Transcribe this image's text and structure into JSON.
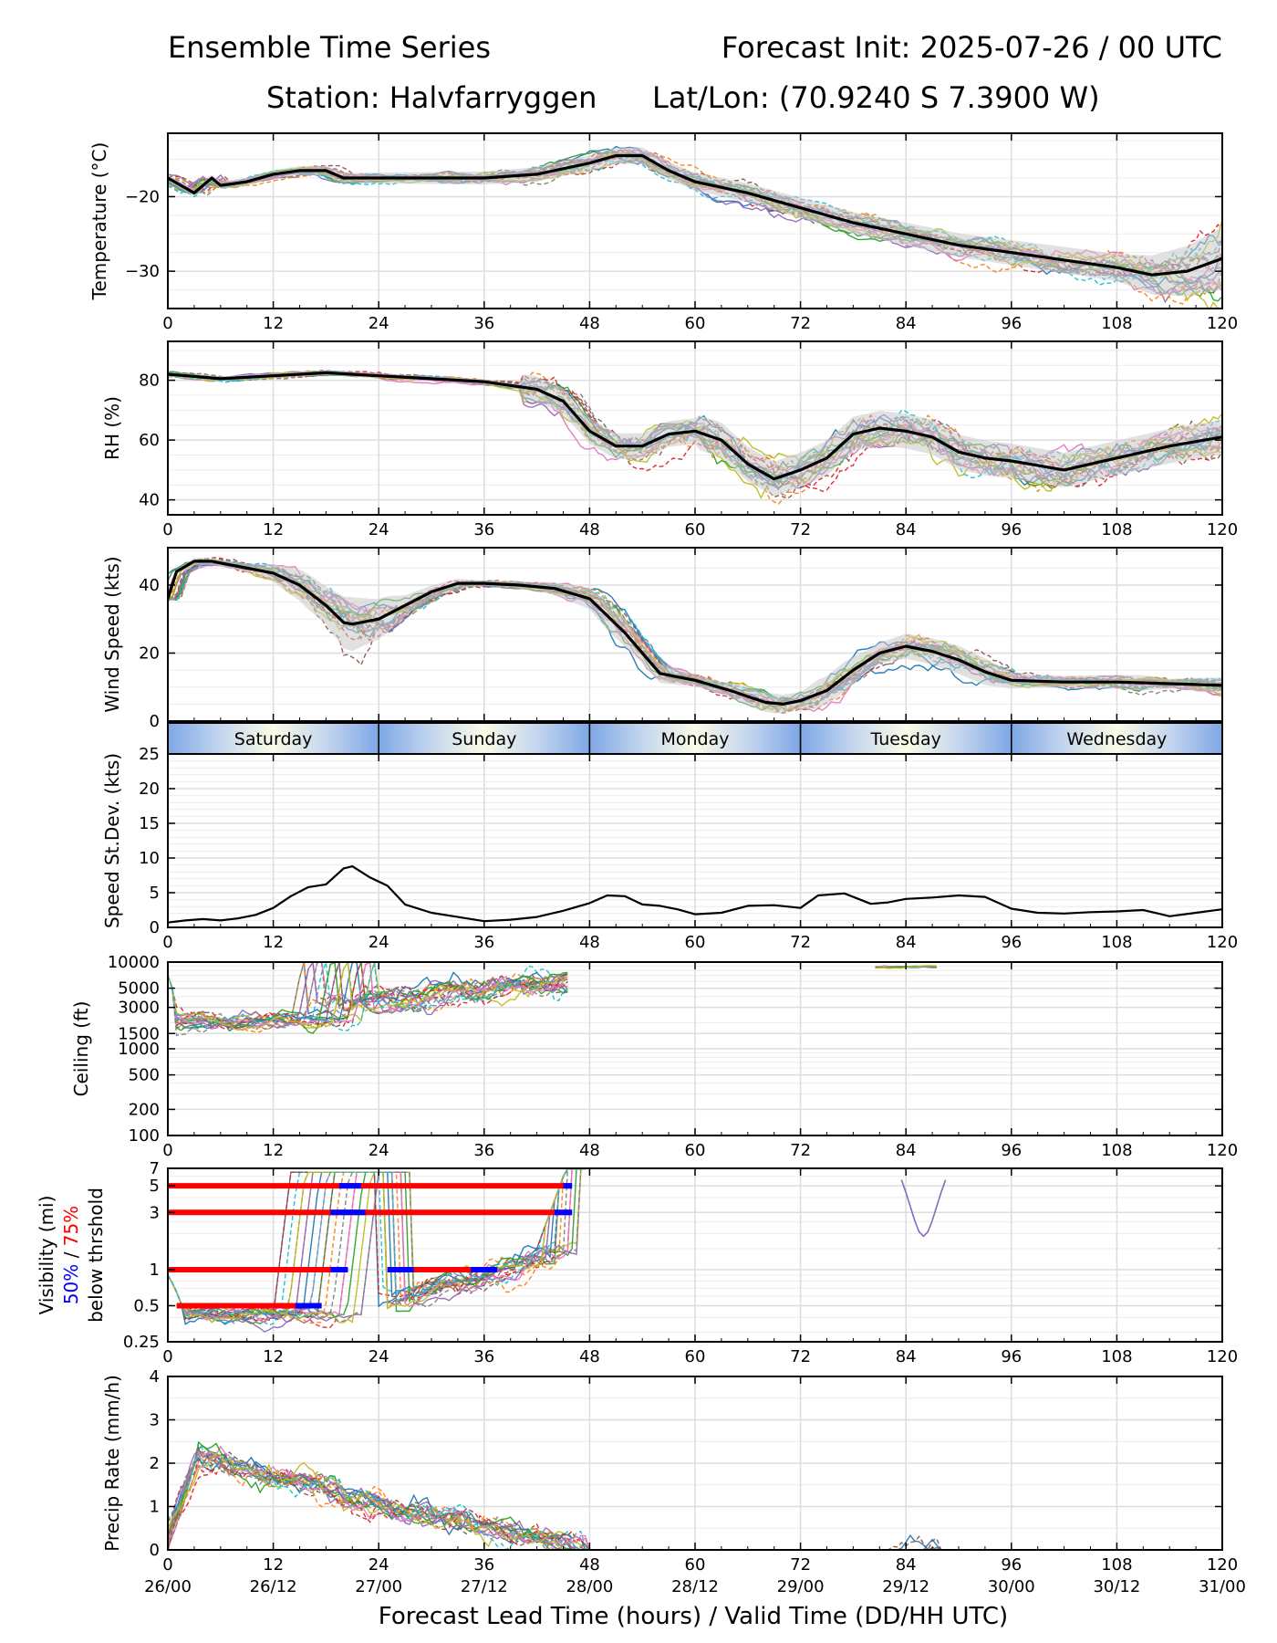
{
  "header": {
    "title_left": "Ensemble Time Series",
    "title_right": "Forecast Init: 2025-07-26 / 00 UTC",
    "station": "Station: Halvfarryggen",
    "latlon": "Lat/Lon: (70.9240 S 7.3900 W)"
  },
  "xlabel": "Forecast Lead Time (hours) / Valid Time (DD/HH UTC)",
  "colors": {
    "mean": "#000000",
    "spread_band": "#c8c8c8",
    "threshold_75": "#ff0000",
    "threshold_50": "#0000ff",
    "grid": "#dddddd",
    "ensemble": [
      "#1f77b4",
      "#ff7f0e",
      "#2ca02c",
      "#d62728",
      "#9467bd",
      "#8c564b",
      "#e377c2",
      "#7f7f7f",
      "#bcbd22",
      "#17becf"
    ]
  },
  "chart_data": [
    {
      "type": "line",
      "name": "temperature",
      "ylabel": "Temperature (°C)",
      "ylim": [
        -35,
        -11.5
      ],
      "yticks": [
        -20,
        -30
      ],
      "ytick_labels": [
        "−20",
        "−30"
      ],
      "xlim": [
        0,
        120
      ],
      "xticks": [
        0,
        12,
        24,
        36,
        48,
        60,
        72,
        84,
        96,
        108,
        120
      ],
      "grid": true,
      "ensemble_members": 20,
      "ensemble_mean": {
        "x": [
          0,
          3,
          4,
          5,
          6,
          9,
          12,
          15,
          18,
          20,
          24,
          30,
          36,
          42,
          48,
          51,
          54,
          57,
          60,
          66,
          72,
          78,
          84,
          90,
          96,
          102,
          108,
          112,
          116,
          120
        ],
        "y": [
          -17.5,
          -19.5,
          -18.5,
          -17.5,
          -18.5,
          -18,
          -17,
          -16.5,
          -16.5,
          -17.5,
          -17.5,
          -17.5,
          -17.5,
          -17,
          -15.5,
          -14.5,
          -14.5,
          -16.5,
          -18,
          -19.5,
          -21.5,
          -23.5,
          -25,
          -26.5,
          -27.5,
          -28.5,
          -29.5,
          -30.5,
          -30,
          -28.3
        ]
      }
    },
    {
      "type": "line",
      "name": "rh",
      "ylabel": "RH (%)",
      "ylim": [
        35,
        93
      ],
      "yticks": [
        80,
        60,
        40
      ],
      "xlim": [
        0,
        120
      ],
      "grid": true,
      "ensemble_members": 20,
      "ensemble_mean": {
        "x": [
          0,
          6,
          12,
          18,
          24,
          30,
          36,
          42,
          45,
          48,
          51,
          54,
          57,
          60,
          63,
          66,
          69,
          72,
          75,
          78,
          81,
          84,
          87,
          90,
          93,
          96,
          102,
          108,
          114,
          120
        ],
        "y": [
          82,
          80.5,
          81.5,
          82.5,
          81.5,
          80.5,
          79.5,
          77,
          73,
          63,
          58,
          58,
          62,
          63,
          60,
          52,
          47,
          50,
          54,
          62,
          64,
          63,
          61,
          56,
          54,
          53,
          50,
          54,
          58,
          61
        ]
      }
    },
    {
      "type": "line",
      "name": "wind_speed",
      "ylabel": "Wind Speed (kts)",
      "ylim": [
        0,
        51
      ],
      "yticks": [
        0,
        20,
        40
      ],
      "xlim": [
        0,
        120
      ],
      "grid": true,
      "ensemble_members": 20,
      "ensemble_mean": {
        "x": [
          0,
          1,
          3,
          5,
          8,
          12,
          15,
          18,
          20,
          21,
          24,
          27,
          30,
          33,
          36,
          40,
          44,
          48,
          52,
          56,
          60,
          64,
          68,
          70,
          72,
          75,
          78,
          81,
          84,
          87,
          90,
          93,
          96,
          102,
          108,
          114,
          120
        ],
        "y": [
          36,
          44,
          47,
          47,
          45.5,
          43.5,
          40,
          34,
          29,
          28.5,
          30,
          34,
          38,
          40.5,
          40.5,
          40,
          39,
          36,
          26,
          14,
          12,
          9,
          5.5,
          5,
          6,
          9,
          15,
          20,
          22,
          20.5,
          18,
          14.5,
          12,
          11.5,
          11.5,
          11,
          10.5
        ]
      }
    },
    {
      "type": "line",
      "name": "speed_stdev",
      "ylabel": "Speed St.Dev. (kts)",
      "ylim": [
        0,
        25
      ],
      "yticks": [
        0,
        5,
        10,
        15,
        20,
        25
      ],
      "xlim": [
        0,
        120
      ],
      "grid": true,
      "series": [
        {
          "x": [
            0,
            2,
            4,
            6,
            8,
            10,
            12,
            14,
            16,
            18,
            20,
            21,
            23,
            25,
            27,
            30,
            33,
            36,
            39,
            42,
            45,
            48,
            50,
            52,
            54,
            56,
            58,
            60,
            63,
            66,
            69,
            72,
            74,
            77,
            80,
            82,
            84,
            87,
            90,
            93,
            96,
            99,
            102,
            105,
            108,
            111,
            114,
            117,
            120
          ],
          "y": [
            0.7,
            1,
            1.2,
            1,
            1.3,
            1.8,
            2.8,
            4.5,
            5.8,
            6.2,
            8.5,
            8.8,
            7.2,
            6,
            3.3,
            2.1,
            1.5,
            0.9,
            1.1,
            1.5,
            2.4,
            3.5,
            4.6,
            4.5,
            3.3,
            3.1,
            2.6,
            1.9,
            2.1,
            3.1,
            3.2,
            2.8,
            4.6,
            4.9,
            3.4,
            3.6,
            4.1,
            4.3,
            4.6,
            4.4,
            2.7,
            2.1,
            2,
            2.2,
            2.3,
            2.5,
            1.6,
            2.1,
            2.6
          ]
        }
      ]
    },
    {
      "type": "line",
      "name": "ceiling",
      "ylabel": "Ceiling (ft)",
      "scale": "log",
      "ylim": [
        100,
        10000
      ],
      "yticks": [
        100,
        200,
        500,
        1000,
        1500,
        3000,
        5000,
        10000
      ],
      "xlim": [
        0,
        120
      ],
      "grid": true,
      "ensemble_members": 20
    },
    {
      "type": "line",
      "name": "visibility",
      "ylabel_lines": [
        "Visibility (mi)",
        "50%",
        " / ",
        "75%",
        "below thrshold"
      ],
      "scale": "log",
      "ylim": [
        0.25,
        7
      ],
      "yticks": [
        0.25,
        0.5,
        1,
        3,
        5,
        7
      ],
      "xlim": [
        0,
        120
      ],
      "grid": true,
      "ensemble_members": 20,
      "threshold_bars": [
        {
          "threshold": 5,
          "pct75": [
            0,
            46
          ],
          "pct50": [
            19.5,
            22
          ]
        },
        {
          "threshold": 5,
          "pct50": [
            45,
            46
          ]
        },
        {
          "threshold": 3,
          "pct75": [
            0,
            46
          ],
          "pct50": [
            18.5,
            22.5
          ]
        },
        {
          "threshold": 3,
          "pct50": [
            44,
            46
          ]
        },
        {
          "threshold": 1,
          "pct75": [
            0,
            18.5
          ],
          "pct50": [
            18.5,
            20.5
          ]
        },
        {
          "threshold": 1,
          "pct75": [
            25,
            37.5
          ],
          "pct50": [
            25,
            28
          ]
        },
        {
          "threshold": 1,
          "pct50": [
            34.5,
            37.5
          ]
        },
        {
          "threshold": 0.5,
          "pct75": [
            1,
            17.5
          ],
          "pct50": [
            14.5,
            17.5
          ]
        }
      ]
    },
    {
      "type": "line",
      "name": "precip_rate",
      "ylabel": "Precip Rate (mm/h)",
      "ylim": [
        0,
        4
      ],
      "yticks": [
        0,
        1,
        2,
        3,
        4
      ],
      "xlim": [
        0,
        120
      ],
      "grid": true,
      "ensemble_members": 20
    }
  ],
  "day_strip": [
    "Saturday",
    "Sunday",
    "Monday",
    "Tuesday",
    "Wednesday"
  ],
  "xtick_labels": [
    "0",
    "12",
    "24",
    "36",
    "48",
    "60",
    "72",
    "84",
    "96",
    "108",
    "120"
  ],
  "valid_time_labels": [
    "26/00",
    "26/12",
    "27/00",
    "27/12",
    "28/00",
    "28/12",
    "29/00",
    "29/12",
    "30/00",
    "30/12",
    "31/00"
  ]
}
